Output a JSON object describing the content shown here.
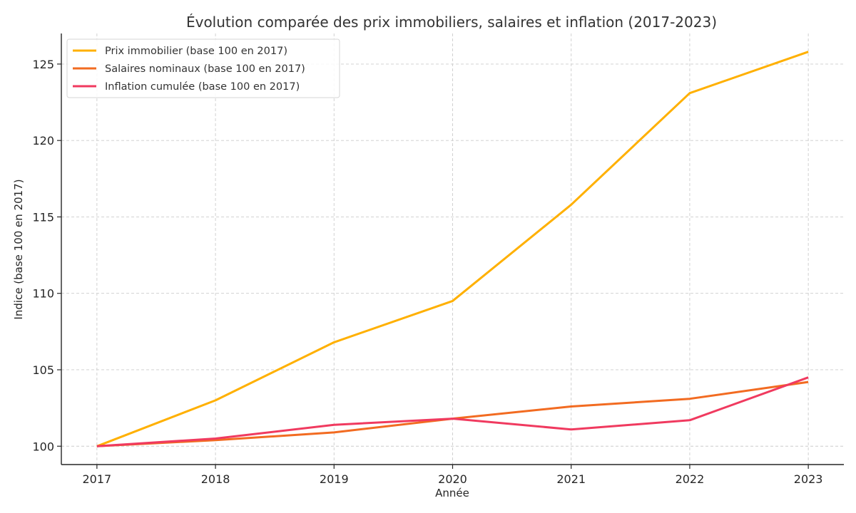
{
  "chart_data": {
    "type": "line",
    "title": "Évolution comparée des prix immobiliers, salaires et inflation (2017-2023)",
    "xlabel": "Année",
    "ylabel": "Indice (base 100 en 2017)",
    "x": [
      2017,
      2018,
      2019,
      2020,
      2021,
      2022,
      2023
    ],
    "x_tick_labels": [
      "2017",
      "2018",
      "2019",
      "2020",
      "2021",
      "2022",
      "2023"
    ],
    "xlim": [
      2016.7,
      2023.3
    ],
    "ylim": [
      98.8,
      127.0
    ],
    "y_ticks": [
      100,
      105,
      110,
      115,
      120,
      125
    ],
    "y_tick_labels": [
      "100",
      "105",
      "110",
      "115",
      "120",
      "125"
    ],
    "grid": true,
    "legend_position": "top-left",
    "series": [
      {
        "name": "Prix immobilier (base 100 en 2017)",
        "color": "#FFB000",
        "values": [
          100,
          103.0,
          106.8,
          109.5,
          115.8,
          123.1,
          125.8
        ]
      },
      {
        "name": "Salaires nominaux (base 100 en 2017)",
        "color": "#F26B21",
        "values": [
          100,
          100.4,
          100.9,
          101.8,
          102.6,
          103.1,
          104.2
        ]
      },
      {
        "name": "Inflation cumulée (base 100 en 2017)",
        "color": "#F03A5F",
        "values": [
          100,
          100.5,
          101.4,
          101.8,
          101.1,
          101.7,
          104.5
        ]
      }
    ]
  }
}
